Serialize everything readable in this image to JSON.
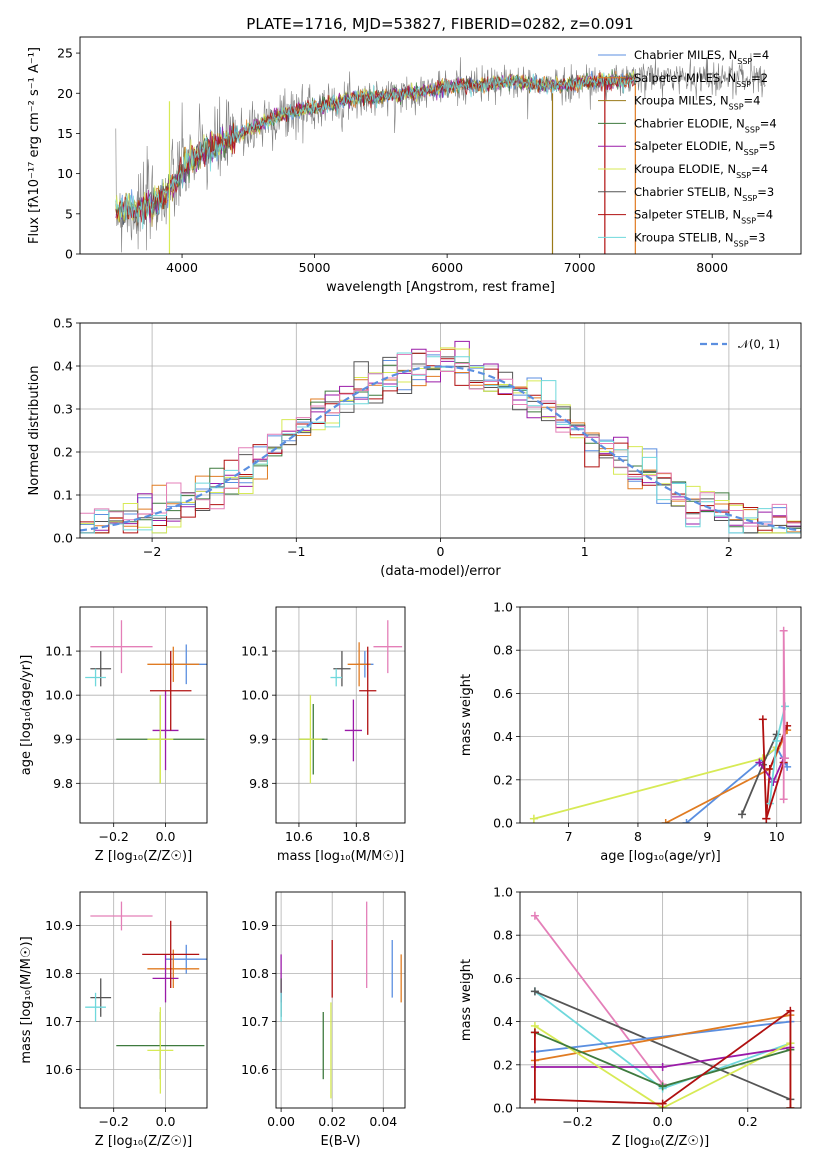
{
  "figure_title": "PLATE=1716, MJD=53827, FIBERID=0282, z=0.091",
  "colors": {
    "Chabrier MILES": "#5b8fe0",
    "Salpeter MILES": "#e07b22",
    "Kroupa MILES": "#9a7a18",
    "Chabrier ELODIE": "#3e7a3e",
    "Salpeter ELODIE": "#9a1aa8",
    "Kroupa ELODIE": "#d7ea55",
    "Chabrier STELIB": "#555555",
    "Salpeter STELIB": "#b01010",
    "Kroupa STELIB": "#6fd8dc",
    "pink": "#e47fb8",
    "data": "#808080",
    "normal": "#5b8fe0"
  },
  "chart_data": [
    {
      "id": "spectrum",
      "type": "line",
      "title": "PLATE=1716, MJD=53827, FIBERID=0282, z=0.091",
      "xlabel": "wavelength [Angstrom, rest frame]",
      "ylabel": "Flux [f$_\\lambda$10$^{-17}$ erg cm$^{-2}$ s$^{-1}$ A$^{-1}$]",
      "xlim": [
        3230,
        8670
      ],
      "ylim": [
        0,
        27
      ],
      "xticks": [
        "4000",
        "5000",
        "6000",
        "7000",
        "8000"
      ],
      "yticks": [
        "0",
        "5",
        "10",
        "15",
        "20",
        "25"
      ],
      "grid": false,
      "legend_position": "right",
      "legend": [
        {
          "name": "Chabrier MILES",
          "nssp": "4"
        },
        {
          "name": "Salpeter MILES",
          "nssp": "2"
        },
        {
          "name": "Kroupa MILES",
          "nssp": "4"
        },
        {
          "name": "Chabrier ELODIE",
          "nssp": "4"
        },
        {
          "name": "Salpeter ELODIE",
          "nssp": "5"
        },
        {
          "name": "Kroupa ELODIE",
          "nssp": "4"
        },
        {
          "name": "Chabrier STELIB",
          "nssp": "3"
        },
        {
          "name": "Salpeter STELIB",
          "nssp": "4"
        },
        {
          "name": "Kroupa STELIB",
          "nssp": "3"
        }
      ],
      "continuum": {
        "x": [
          3500,
          3700,
          3850,
          3950,
          4050,
          4200,
          4350,
          4500,
          4700,
          4900,
          5100,
          5300,
          5500,
          5700,
          5900,
          6100,
          6300,
          6500,
          6700,
          6900,
          7100,
          7300,
          7500,
          7700,
          7900,
          8100,
          8300,
          8400
        ],
        "y": [
          5.5,
          5.5,
          7,
          9,
          11.5,
          13,
          14,
          15.5,
          17,
          18,
          18.5,
          19.5,
          19.5,
          20,
          20.5,
          21,
          21,
          21.5,
          21,
          21,
          21.5,
          21.5,
          22,
          22,
          22,
          22,
          22,
          22
        ]
      },
      "data_range": [
        3500,
        8400
      ],
      "model_range": [
        3500,
        7430
      ]
    },
    {
      "id": "residual_histogram",
      "type": "bar",
      "xlabel": "(data-model)/error",
      "ylabel": "Normed distribution",
      "xlim": [
        -2.5,
        2.5
      ],
      "ylim": [
        0,
        0.5
      ],
      "xticks": [
        "−2",
        "−1",
        "0",
        "1",
        "2"
      ],
      "yticks": [
        "0.0",
        "0.1",
        "0.2",
        "0.3",
        "0.4",
        "0.5"
      ],
      "grid": true,
      "legend_position": "top-right",
      "legend": [
        {
          "name": "𝒩(0, 1)"
        }
      ],
      "bins": 50
    },
    {
      "id": "age_vs_Z",
      "type": "scatter",
      "xlabel": "Z [log₁₀(Z/Z☉)]",
      "ylabel": "age  [log₁₀(age/yr)]",
      "xlim": [
        -0.33,
        0.16
      ],
      "ylim": [
        9.71,
        10.2
      ],
      "xticks": [
        "−0.2",
        "0.0"
      ],
      "yticks": [
        "9.8",
        "9.9",
        "10.0",
        "10.1"
      ],
      "grid": true,
      "series": [
        {
          "name": "Chabrier MILES",
          "x": 0.08,
          "y": 10.07,
          "xerr": 0.08,
          "yerr": 0.045
        },
        {
          "name": "Salpeter MILES",
          "x": 0.03,
          "y": 10.07,
          "xerr": 0.1,
          "yerr": 0.04
        },
        {
          "name": "Chabrier ELODIE",
          "x": -0.02,
          "y": 9.9,
          "xerr": 0.17,
          "yerr": 0.1
        },
        {
          "name": "Salpeter ELODIE",
          "x": 0.0,
          "y": 9.92,
          "xerr": 0.05,
          "yerr": 0.09
        },
        {
          "name": "Kroupa ELODIE",
          "x": -0.02,
          "y": 9.9,
          "xerr": 0.05,
          "yerr": 0.1
        },
        {
          "name": "Chabrier STELIB",
          "x": -0.25,
          "y": 10.06,
          "xerr": 0.04,
          "yerr": 0.04
        },
        {
          "name": "Salpeter STELIB",
          "x": 0.02,
          "y": 10.01,
          "xerr": 0.08,
          "yerr": 0.09
        },
        {
          "name": "Kroupa STELIB",
          "x": -0.27,
          "y": 10.04,
          "xerr": 0.04,
          "yerr": 0.02
        },
        {
          "name": "pink",
          "x": -0.17,
          "y": 10.11,
          "xerr": 0.12,
          "yerr": 0.06
        }
      ]
    },
    {
      "id": "age_vs_mass",
      "type": "scatter",
      "xlabel": "mass [log₁₀(M/M☉)]",
      "ylabel": "",
      "xlim": [
        10.52,
        10.97
      ],
      "ylim": [
        9.71,
        10.2
      ],
      "xticks": [
        "10.6",
        "10.8"
      ],
      "yticks": [
        "9.8",
        "9.9",
        "10.0",
        "10.1"
      ],
      "grid": true,
      "series": [
        {
          "name": "Chabrier MILES",
          "x": 10.83,
          "y": 10.07,
          "xerr": 0.03,
          "yerr": 0.03
        },
        {
          "name": "Salpeter MILES",
          "x": 10.81,
          "y": 10.07,
          "xerr": 0.04,
          "yerr": 0.05
        },
        {
          "name": "Chabrier ELODIE",
          "x": 10.65,
          "y": 9.9,
          "xerr": 0.05,
          "yerr": 0.08
        },
        {
          "name": "Salpeter ELODIE",
          "x": 10.79,
          "y": 9.92,
          "xerr": 0.03,
          "yerr": 0.07
        },
        {
          "name": "Kroupa ELODIE",
          "x": 10.64,
          "y": 9.9,
          "xerr": 0.04,
          "yerr": 0.1
        },
        {
          "name": "Chabrier STELIB",
          "x": 10.75,
          "y": 10.06,
          "xerr": 0.03,
          "yerr": 0.04
        },
        {
          "name": "Salpeter STELIB",
          "x": 10.84,
          "y": 10.01,
          "xerr": 0.03,
          "yerr": 0.1
        },
        {
          "name": "Kroupa STELIB",
          "x": 10.73,
          "y": 10.04,
          "xerr": 0.02,
          "yerr": 0.02
        },
        {
          "name": "pink",
          "x": 10.91,
          "y": 10.11,
          "xerr": 0.05,
          "yerr": 0.06
        }
      ]
    },
    {
      "id": "massweight_vs_age",
      "type": "line",
      "xlabel": "age  [log₁₀(age/yr)]",
      "ylabel": "mass weight",
      "xlim": [
        6.3,
        10.35
      ],
      "ylim": [
        0,
        1
      ],
      "xticks": [
        "7",
        "8",
        "9",
        "10"
      ],
      "yticks": [
        "0.0",
        "0.2",
        "0.4",
        "0.6",
        "0.8",
        "1.0"
      ],
      "grid": true,
      "series": [
        {
          "name": "Chabrier MILES",
          "x": [
            8.7,
            10.0,
            10.15
          ],
          "y": [
            0.0,
            0.35,
            0.26
          ]
        },
        {
          "name": "Salpeter MILES",
          "x": [
            8.4,
            9.9,
            10.15
          ],
          "y": [
            0.0,
            0.25,
            0.43
          ]
        },
        {
          "name": "Kroupa ELODIE",
          "x": [
            6.5,
            9.8,
            10.0
          ],
          "y": [
            0.02,
            0.3,
            0.35
          ]
        },
        {
          "name": "Chabrier STELIB",
          "x": [
            9.5,
            9.8,
            10.0
          ],
          "y": [
            0.04,
            0.27,
            0.41
          ]
        },
        {
          "name": "Salpeter STELIB",
          "x": [
            9.85,
            9.9,
            10.15
          ],
          "y": [
            0.02,
            0.25,
            0.45
          ]
        },
        {
          "name": "Salpeter ELODIE",
          "x": [
            9.75,
            9.95,
            10.1
          ],
          "y": [
            0.28,
            0.19,
            0.3
          ]
        },
        {
          "name": "Kroupa STELIB",
          "x": [
            9.9,
            10.0,
            10.12
          ],
          "y": [
            0.09,
            0.38,
            0.54
          ]
        },
        {
          "name": "Salpeter STELIB",
          "x": [
            9.8,
            9.85,
            10.1
          ],
          "y": [
            0.48,
            0.02,
            0.28
          ]
        },
        {
          "name": "pink",
          "x": [
            10.1,
            10.1,
            10.12
          ],
          "y": [
            0.11,
            0.89,
            0.3
          ]
        }
      ]
    },
    {
      "id": "mass_vs_Z",
      "type": "scatter",
      "xlabel": "Z [log₁₀(Z/Z☉)]",
      "ylabel": "mass [log₁₀(M/M☉)]",
      "xlim": [
        -0.33,
        0.16
      ],
      "ylim": [
        10.52,
        10.97
      ],
      "xticks": [
        "−0.2",
        "0.0"
      ],
      "yticks": [
        "10.6",
        "10.7",
        "10.8",
        "10.9"
      ],
      "grid": true,
      "series": [
        {
          "name": "Chabrier MILES",
          "x": 0.08,
          "y": 10.83,
          "xerr": 0.08,
          "yerr": 0.03
        },
        {
          "name": "Salpeter MILES",
          "x": 0.03,
          "y": 10.81,
          "xerr": 0.1,
          "yerr": 0.04
        },
        {
          "name": "Chabrier ELODIE",
          "x": -0.02,
          "y": 10.65,
          "xerr": 0.17,
          "yerr": 0.07
        },
        {
          "name": "Salpeter ELODIE",
          "x": 0.0,
          "y": 10.79,
          "xerr": 0.05,
          "yerr": 0.05
        },
        {
          "name": "Kroupa ELODIE",
          "x": -0.02,
          "y": 10.64,
          "xerr": 0.05,
          "yerr": 0.09
        },
        {
          "name": "Chabrier STELIB",
          "x": -0.25,
          "y": 10.75,
          "xerr": 0.04,
          "yerr": 0.04
        },
        {
          "name": "Salpeter STELIB",
          "x": 0.02,
          "y": 10.84,
          "xerr": 0.11,
          "yerr": 0.07
        },
        {
          "name": "Kroupa STELIB",
          "x": -0.27,
          "y": 10.73,
          "xerr": 0.04,
          "yerr": 0.03
        },
        {
          "name": "pink",
          "x": -0.17,
          "y": 10.92,
          "xerr": 0.12,
          "yerr": 0.03
        }
      ]
    },
    {
      "id": "mass_vs_ebv",
      "type": "scatter",
      "xlabel": "E(B-V)",
      "ylabel": "",
      "xlim": [
        -0.002,
        0.0485
      ],
      "ylim": [
        10.52,
        10.97
      ],
      "xticks": [
        "0.00",
        "0.02",
        "0.04"
      ],
      "yticks": [
        "10.6",
        "10.7",
        "10.8",
        "10.9"
      ],
      "grid": true,
      "series": [
        {
          "name": "Chabrier MILES",
          "x": 0.0435,
          "y": 10.81,
          "xerr": 0.0,
          "yerr": 0.06
        },
        {
          "name": "Salpeter MILES",
          "x": 0.047,
          "y": 10.79,
          "xerr": 0.0,
          "yerr": 0.05
        },
        {
          "name": "Chabrier ELODIE",
          "x": 0.0165,
          "y": 10.65,
          "xerr": 0.0,
          "yerr": 0.07
        },
        {
          "name": "Salpeter ELODIE",
          "x": 0.0,
          "y": 10.79,
          "xerr": 0.0,
          "yerr": 0.05
        },
        {
          "name": "Kroupa ELODIE",
          "x": 0.0195,
          "y": 10.64,
          "xerr": 0.0,
          "yerr": 0.1
        },
        {
          "name": "Chabrier STELIB",
          "x": 0.0,
          "y": 10.75,
          "xerr": 0.0,
          "yerr": 0.04
        },
        {
          "name": "Salpeter STELIB",
          "x": 0.02,
          "y": 10.81,
          "xerr": 0.0,
          "yerr": 0.06
        },
        {
          "name": "Kroupa STELIB",
          "x": 0.0,
          "y": 10.73,
          "xerr": 0.0,
          "yerr": 0.03
        },
        {
          "name": "pink",
          "x": 0.0335,
          "y": 10.86,
          "xerr": 0.0,
          "yerr": 0.09
        }
      ]
    },
    {
      "id": "massweight_vs_Z",
      "type": "line",
      "xlabel": "Z [log₁₀(Z/Z☉)]",
      "ylabel": "mass weight",
      "xlim": [
        -0.335,
        0.325
      ],
      "ylim": [
        0,
        1
      ],
      "xticks": [
        "−0.2",
        "0.0",
        "0.2"
      ],
      "yticks": [
        "0.0",
        "0.2",
        "0.4",
        "0.6",
        "0.8",
        "1.0"
      ],
      "grid": true,
      "series": [
        {
          "name": "pink",
          "x": [
            -0.3,
            0.0
          ],
          "y": [
            0.89,
            0.11
          ]
        },
        {
          "name": "Kroupa STELIB",
          "x": [
            -0.3,
            0.0,
            0.3
          ],
          "y": [
            0.54,
            0.09,
            0.3
          ]
        },
        {
          "name": "Chabrier STELIB",
          "x": [
            -0.3,
            0.3
          ],
          "y": [
            0.54,
            0.04
          ]
        },
        {
          "name": "Chabrier MILES",
          "x": [
            -0.3,
            0.3
          ],
          "y": [
            0.26,
            0.4
          ]
        },
        {
          "name": "Salpeter MILES",
          "x": [
            -0.3,
            0.3,
            0.3
          ],
          "y": [
            0.22,
            0.43,
            0.0
          ]
        },
        {
          "name": "Salpeter ELODIE",
          "x": [
            -0.3,
            0.0,
            0.3
          ],
          "y": [
            0.19,
            0.19,
            0.28
          ]
        },
        {
          "name": "Kroupa ELODIE",
          "x": [
            -0.3,
            0.0,
            0.3
          ],
          "y": [
            0.38,
            0.0,
            0.3
          ]
        },
        {
          "name": "Chabrier ELODIE",
          "x": [
            -0.3,
            0.0,
            0.3
          ],
          "y": [
            0.35,
            0.1,
            0.27
          ]
        },
        {
          "name": "Salpeter STELIB",
          "x": [
            -0.3,
            -0.3,
            0.0,
            0.3,
            0.3
          ],
          "y": [
            0.35,
            0.04,
            0.02,
            0.45,
            0.0
          ]
        }
      ]
    }
  ]
}
